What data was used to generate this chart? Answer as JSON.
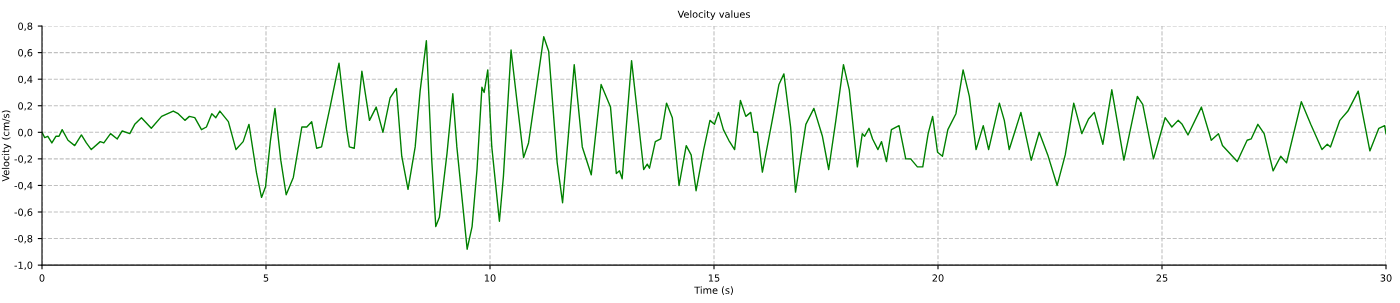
{
  "chart_data": {
    "type": "line",
    "title": "Velocity values",
    "xlabel": "Time (s)",
    "ylabel": "Velocity (cm/s)",
    "xlim": [
      0,
      30
    ],
    "ylim": [
      -1.0,
      0.8
    ],
    "xticks": [
      0,
      5,
      10,
      15,
      20,
      25,
      30
    ],
    "yticks": [
      {
        "value": -1.0,
        "label": "-1,0"
      },
      {
        "value": -0.8,
        "label": "-0,8"
      },
      {
        "value": -0.6,
        "label": "-0,6"
      },
      {
        "value": -0.4,
        "label": "-0,4"
      },
      {
        "value": -0.2,
        "label": "-0,2"
      },
      {
        "value": 0.0,
        "label": "0,0"
      },
      {
        "value": 0.2,
        "label": "0,2"
      },
      {
        "value": 0.4,
        "label": "0,4"
      },
      {
        "value": 0.6,
        "label": "0,6"
      },
      {
        "value": 0.8,
        "label": "0,8"
      }
    ],
    "grid": true,
    "marker": "none",
    "line_style": "solid",
    "series": [
      {
        "color": "#008000",
        "x": [
          0,
          0.06,
          0.13,
          0.22,
          0.31,
          0.38,
          0.45,
          0.58,
          0.73,
          0.88,
          0.99,
          1.1,
          1.3,
          1.38,
          1.53,
          1.68,
          1.79,
          1.96,
          2.07,
          2.22,
          2.44,
          2.67,
          2.93,
          3.04,
          3.19,
          3.29,
          3.41,
          3.56,
          3.67,
          3.79,
          3.88,
          3.97,
          4.16,
          4.33,
          4.49,
          4.62,
          4.79,
          4.9,
          4.99,
          5.1,
          5.2,
          5.33,
          5.45,
          5.61,
          5.8,
          5.91,
          6.02,
          6.13,
          6.24,
          6.43,
          6.63,
          6.8,
          6.86,
          6.97,
          7.14,
          7.31,
          7.46,
          7.61,
          7.77,
          7.91,
          8.03,
          8.17,
          8.33,
          8.44,
          8.58,
          8.7,
          8.79,
          8.87,
          9.04,
          9.17,
          9.26,
          9.41,
          9.49,
          9.6,
          9.71,
          9.82,
          9.87,
          9.95,
          10.04,
          10.21,
          10.3,
          10.47,
          10.6,
          10.75,
          10.86,
          11.01,
          11.2,
          11.31,
          11.5,
          11.62,
          11.76,
          11.88,
          12.06,
          12.26,
          12.48,
          12.69,
          12.82,
          12.89,
          12.95,
          13.16,
          13.43,
          13.51,
          13.56,
          13.69,
          13.81,
          13.94,
          14.07,
          14.22,
          14.38,
          14.49,
          14.6,
          14.77,
          14.91,
          15.01,
          15.1,
          15.21,
          15.33,
          15.46,
          15.59,
          15.71,
          15.82,
          15.89,
          15.97,
          16.08,
          16.3,
          16.45,
          16.56,
          16.71,
          16.82,
          16.94,
          17.05,
          17.23,
          17.42,
          17.56,
          17.72,
          17.89,
          18.02,
          18.2,
          18.31,
          18.36,
          18.46,
          18.54,
          18.66,
          18.74,
          18.85,
          18.96,
          19.13,
          19.28,
          19.39,
          19.54,
          19.66,
          19.78,
          19.88,
          19.99,
          20.1,
          20.22,
          20.4,
          20.56,
          20.7,
          20.85,
          21.01,
          21.13,
          21.37,
          21.48,
          21.59,
          21.85,
          22.08,
          22.26,
          22.45,
          22.66,
          22.84,
          23.03,
          23.21,
          23.36,
          23.49,
          23.68,
          23.88,
          24.15,
          24.45,
          24.57,
          24.81,
          25.07,
          25.22,
          25.36,
          25.45,
          25.58,
          25.88,
          26.1,
          26.26,
          26.35,
          26.68,
          26.9,
          26.99,
          27.14,
          27.28,
          27.48,
          27.65,
          27.78,
          28.11,
          28.32,
          28.57,
          28.69,
          28.76,
          28.97,
          29.15,
          29.38,
          29.64,
          29.84,
          29.97,
          30
        ],
        "values": [
          0,
          -0.04,
          -0.03,
          -0.08,
          -0.03,
          -0.03,
          0.02,
          -0.06,
          -0.1,
          -0.02,
          -0.08,
          -0.13,
          -0.07,
          -0.08,
          -0.01,
          -0.05,
          0.01,
          -0.01,
          0.06,
          0.11,
          0.03,
          0.12,
          0.16,
          0.14,
          0.09,
          0.12,
          0.11,
          0.02,
          0.04,
          0.14,
          0.11,
          0.16,
          0.08,
          -0.13,
          -0.07,
          0.06,
          -0.31,
          -0.49,
          -0.41,
          -0.06,
          0.18,
          -0.21,
          -0.47,
          -0.34,
          0.04,
          0.04,
          0.08,
          -0.12,
          -0.11,
          0.19,
          0.52,
          0.02,
          -0.11,
          -0.12,
          0.46,
          0.09,
          0.19,
          0.0,
          0.26,
          0.33,
          -0.18,
          -0.43,
          -0.11,
          0.31,
          0.69,
          -0.21,
          -0.71,
          -0.64,
          -0.16,
          0.29,
          -0.11,
          -0.61,
          -0.88,
          -0.71,
          -0.28,
          0.34,
          0.3,
          0.47,
          -0.11,
          -0.67,
          -0.33,
          0.62,
          0.24,
          -0.19,
          -0.08,
          0.27,
          0.72,
          0.61,
          -0.23,
          -0.53,
          0.02,
          0.51,
          -0.11,
          -0.32,
          0.36,
          0.19,
          -0.31,
          -0.29,
          -0.35,
          0.54,
          -0.28,
          -0.24,
          -0.27,
          -0.07,
          -0.05,
          0.22,
          0.11,
          -0.4,
          -0.1,
          -0.17,
          -0.44,
          -0.13,
          0.09,
          0.06,
          0.15,
          0.02,
          -0.06,
          -0.13,
          0.24,
          0.12,
          0.15,
          0.0,
          0.0,
          -0.3,
          0.09,
          0.36,
          0.44,
          0.04,
          -0.45,
          -0.18,
          0.06,
          0.18,
          -0.03,
          -0.28,
          0.09,
          0.51,
          0.32,
          -0.26,
          -0.01,
          -0.03,
          0.03,
          -0.05,
          -0.13,
          -0.07,
          -0.22,
          0.02,
          0.05,
          -0.2,
          -0.2,
          -0.26,
          -0.26,
          -0.01,
          0.12,
          -0.15,
          -0.18,
          0.02,
          0.14,
          0.47,
          0.27,
          -0.13,
          0.05,
          -0.13,
          0.22,
          0.09,
          -0.13,
          0.15,
          -0.21,
          0.0,
          -0.17,
          -0.4,
          -0.17,
          0.22,
          -0.01,
          0.1,
          0.15,
          -0.09,
          0.32,
          -0.21,
          0.27,
          0.21,
          -0.2,
          0.11,
          0.04,
          0.09,
          0.06,
          -0.02,
          0.19,
          -0.06,
          -0.01,
          -0.1,
          -0.22,
          -0.06,
          -0.05,
          0.06,
          -0.01,
          -0.29,
          -0.18,
          -0.23,
          0.23,
          0.06,
          -0.13,
          -0.09,
          -0.11,
          0.09,
          0.16,
          0.31,
          -0.14,
          0.03,
          0.05,
          -0.01
        ]
      }
    ]
  }
}
